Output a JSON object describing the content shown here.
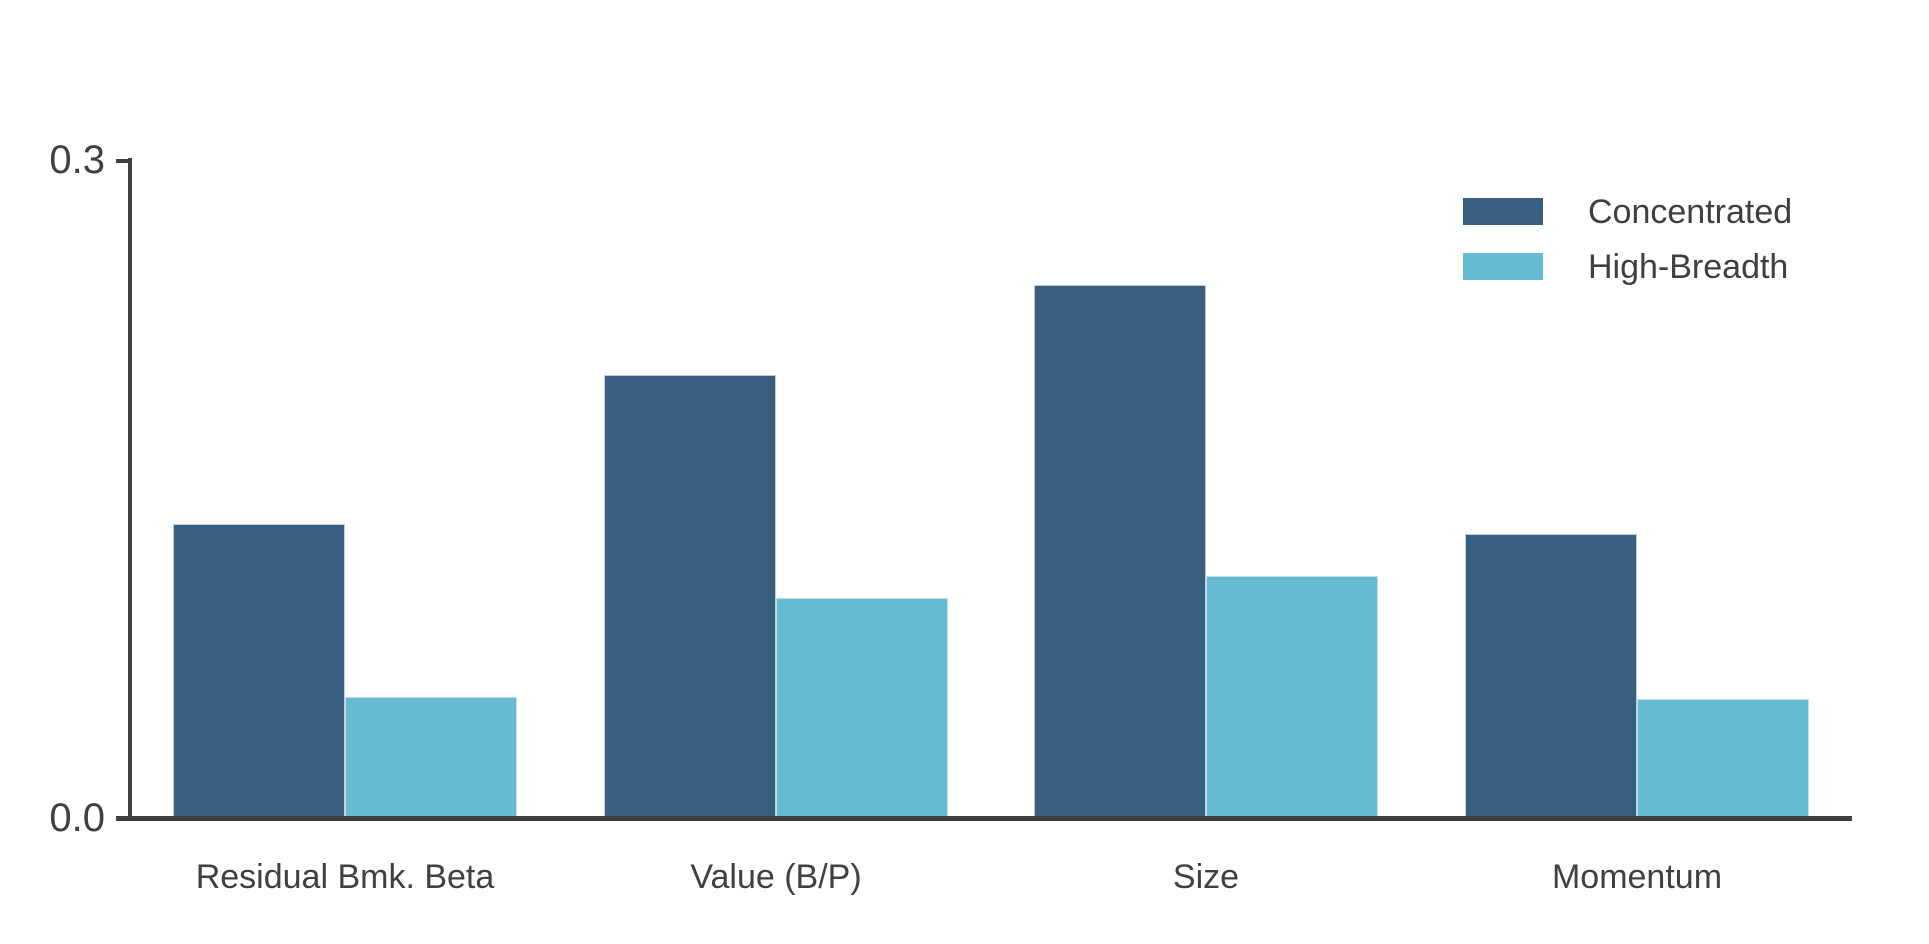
{
  "chart_data": {
    "type": "bar",
    "title": "",
    "xlabel": "",
    "ylabel": "",
    "categories": [
      "Residual Bmk. Beta",
      "Value (B/P)",
      "Size",
      "Momentum"
    ],
    "series": [
      {
        "name": "Concentrated",
        "color": "#395F80",
        "values": [
          0.134,
          0.202,
          0.243,
          0.129
        ]
      },
      {
        "name": "High-Breadth",
        "color": "#65BCD3",
        "values": [
          0.055,
          0.1,
          0.11,
          0.054
        ]
      }
    ],
    "ylim": [
      0.0,
      0.3
    ],
    "y_ticks": [
      {
        "value": 0.0,
        "label": "0.0"
      },
      {
        "value": 0.3,
        "label": "0.3"
      }
    ],
    "grid": false,
    "legend_position": "top-right",
    "colors": {
      "axis": "#3F3F3F",
      "text": "#404040",
      "background": "#FFFFFF"
    }
  }
}
